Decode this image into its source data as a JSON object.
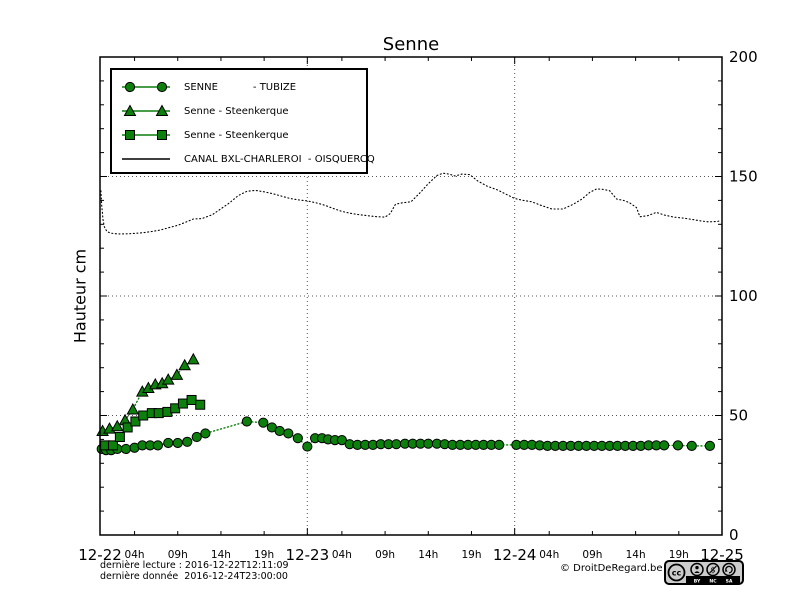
{
  "title": "Senne",
  "ylabel": "Hauteur cm",
  "footer": {
    "line1": "dernière lecture : 2016-12-22T12:11:09",
    "line2": "dernière donnée  2016-12-24T23:00:00",
    "copyright": "© DroitDeRegard.be",
    "license": {
      "cc_label": "cc",
      "labels": [
        "BY",
        "NC",
        "SA"
      ]
    }
  },
  "colors": {
    "series_green": "#0c7f0c",
    "canal_black": "#000000",
    "grid": "#555555"
  },
  "legend": [
    {
      "label": "SENNE           - TUBIZE",
      "marker": "circle",
      "color": "#0c7f0c"
    },
    {
      "label": "Senne - Steenkerque",
      "marker": "triangle",
      "color": "#0c7f0c"
    },
    {
      "label": "Senne - Steenkerque",
      "marker": "square",
      "color": "#0c7f0c"
    },
    {
      "label": "CANAL BXL-CHARLEROI  - OISQUERCQ",
      "marker": "line",
      "color": "#000000"
    }
  ],
  "chart_data": {
    "type": "line",
    "title": "Senne",
    "ylabel": "Hauteur cm",
    "ylim": [
      0,
      200
    ],
    "yticks": [
      0,
      50,
      100,
      150,
      200
    ],
    "y_minor_step": 10,
    "xlim_hours": [
      0,
      72
    ],
    "x_day_labels": [
      "12-22",
      "12-23",
      "12-24",
      "12-25"
    ],
    "x_day_hours": [
      0,
      24,
      48,
      72
    ],
    "x_minor_labels": [
      "04h",
      "09h",
      "14h",
      "19h"
    ],
    "x_minor_hours": [
      4,
      9,
      14,
      19
    ],
    "minor_label_day_offsets": [
      0,
      24,
      48
    ],
    "grid": true,
    "grid_x_hours": [
      24,
      48
    ],
    "grid_y_values": [
      50,
      100,
      150
    ],
    "series": [
      {
        "id": "canal-oisquercq",
        "name": "CANAL BXL-CHARLEROI - OISQUERCQ",
        "marker": "none",
        "color": "#000000",
        "points": [
          [
            0.1,
            144
          ],
          [
            0.2,
            138
          ],
          [
            0.35,
            132
          ],
          [
            0.5,
            129
          ],
          [
            0.8,
            127
          ],
          [
            1.2,
            126.3
          ],
          [
            2,
            126
          ],
          [
            3,
            126
          ],
          [
            4,
            126.2
          ],
          [
            5,
            126.5
          ],
          [
            6,
            127
          ],
          [
            7,
            127.6
          ],
          [
            8,
            128.6
          ],
          [
            9,
            129.6
          ],
          [
            10,
            131
          ],
          [
            10.8,
            132.2
          ],
          [
            11.8,
            132.4
          ],
          [
            13,
            134
          ],
          [
            14,
            136.5
          ],
          [
            15,
            139
          ],
          [
            16,
            142
          ],
          [
            17,
            143.8
          ],
          [
            18,
            144.2
          ],
          [
            19,
            143.6
          ],
          [
            20,
            142.8
          ],
          [
            21,
            141.8
          ],
          [
            22,
            140.8
          ],
          [
            23,
            140.2
          ],
          [
            24,
            139.8
          ],
          [
            25,
            139
          ],
          [
            26,
            138
          ],
          [
            27,
            136.6
          ],
          [
            28,
            135.4
          ],
          [
            29,
            134.6
          ],
          [
            30,
            134
          ],
          [
            31,
            133.6
          ],
          [
            32,
            133.2
          ],
          [
            33,
            133
          ],
          [
            33.6,
            134.5
          ],
          [
            34.2,
            138.4
          ],
          [
            35,
            139
          ],
          [
            36,
            139.4
          ],
          [
            37,
            143
          ],
          [
            38,
            147
          ],
          [
            39,
            150.4
          ],
          [
            39.7,
            151.4
          ],
          [
            40.4,
            151
          ],
          [
            41.1,
            150.2
          ],
          [
            41.9,
            151
          ],
          [
            42.8,
            150.8
          ],
          [
            43.7,
            148.2
          ],
          [
            44.8,
            146
          ],
          [
            46,
            144.4
          ],
          [
            47,
            142.6
          ],
          [
            48,
            140.8
          ],
          [
            49,
            140
          ],
          [
            50,
            139.4
          ],
          [
            51,
            138
          ],
          [
            52.3,
            136.4
          ],
          [
            53.6,
            136.4
          ],
          [
            54.8,
            138.4
          ],
          [
            55.8,
            140.6
          ],
          [
            56.7,
            143.4
          ],
          [
            57.5,
            144.8
          ],
          [
            58.3,
            144.6
          ],
          [
            59,
            144
          ],
          [
            59.8,
            140.6
          ],
          [
            60.6,
            140
          ],
          [
            61.3,
            139
          ],
          [
            62.1,
            137
          ],
          [
            62.5,
            133.2
          ],
          [
            63.4,
            133.6
          ],
          [
            64.4,
            135
          ],
          [
            65.4,
            133.8
          ],
          [
            66.4,
            133
          ],
          [
            67.5,
            132.6
          ],
          [
            68.6,
            132
          ],
          [
            69.6,
            131.4
          ],
          [
            70.5,
            131
          ],
          [
            71.5,
            131.2
          ],
          [
            71.9,
            131.6
          ]
        ]
      },
      {
        "id": "senne-tubize",
        "name": "SENNE - TUBIZE",
        "marker": "circle",
        "color": "#0c7f0c",
        "points": [
          [
            0.2,
            36
          ],
          [
            0.7,
            35.5
          ],
          [
            1.3,
            35.5
          ],
          [
            2,
            36
          ],
          [
            3,
            36
          ],
          [
            4,
            36.5
          ],
          [
            4.9,
            37.5
          ],
          [
            5.8,
            37.5
          ],
          [
            6.7,
            37.5
          ],
          [
            7.9,
            38.5
          ],
          [
            9,
            38.5
          ],
          [
            10.1,
            39
          ],
          [
            11.2,
            41
          ],
          [
            12.2,
            42.5
          ],
          [
            17,
            47.5
          ],
          [
            18.9,
            47
          ],
          [
            19.9,
            45
          ],
          [
            20.8,
            43.5
          ],
          [
            21.8,
            42.5
          ],
          [
            22.9,
            40.5
          ],
          [
            24,
            37
          ],
          [
            24.9,
            40.5
          ],
          [
            25.7,
            40.5
          ],
          [
            26.4,
            40
          ],
          [
            27.2,
            39.7
          ],
          [
            28,
            39.7
          ],
          [
            28.9,
            38
          ],
          [
            29.8,
            37.7
          ],
          [
            30.7,
            37.7
          ],
          [
            31.6,
            37.7
          ],
          [
            32.5,
            38
          ],
          [
            33.4,
            38
          ],
          [
            34.3,
            38
          ],
          [
            35.3,
            38.2
          ],
          [
            36.2,
            38.2
          ],
          [
            37.1,
            38.2
          ],
          [
            38,
            38.2
          ],
          [
            39,
            38.2
          ],
          [
            39.9,
            38
          ],
          [
            40.8,
            37.7
          ],
          [
            41.7,
            37.7
          ],
          [
            42.6,
            37.7
          ],
          [
            43.5,
            37.7
          ],
          [
            44.4,
            37.7
          ],
          [
            45.3,
            37.7
          ],
          [
            46.2,
            37.7
          ],
          [
            48.2,
            37.7
          ],
          [
            49.1,
            37.7
          ],
          [
            50,
            37.7
          ],
          [
            50.9,
            37.5
          ],
          [
            51.8,
            37.3
          ],
          [
            52.7,
            37.3
          ],
          [
            53.6,
            37.3
          ],
          [
            54.5,
            37.3
          ],
          [
            55.4,
            37.3
          ],
          [
            56.3,
            37.3
          ],
          [
            57.2,
            37.3
          ],
          [
            58.1,
            37.3
          ],
          [
            59,
            37.3
          ],
          [
            59.9,
            37.3
          ],
          [
            60.8,
            37.3
          ],
          [
            61.7,
            37.3
          ],
          [
            62.6,
            37.3
          ],
          [
            63.5,
            37.5
          ],
          [
            64.4,
            37.5
          ],
          [
            65.3,
            37.5
          ],
          [
            66.9,
            37.5
          ],
          [
            68.5,
            37.3
          ],
          [
            70.6,
            37.3
          ]
        ]
      },
      {
        "id": "senne-steenkerque-tri",
        "name": "Senne - Steenkerque",
        "marker": "triangle",
        "color": "#0c7f0c",
        "points": [
          [
            0.3,
            43.5
          ],
          [
            1.1,
            44.5
          ],
          [
            2,
            45.5
          ],
          [
            2.9,
            48
          ],
          [
            3.8,
            52.5
          ],
          [
            4.9,
            60
          ],
          [
            5.6,
            61.5
          ],
          [
            6.4,
            63
          ],
          [
            7.2,
            63.5
          ],
          [
            7.9,
            65
          ],
          [
            8.9,
            67
          ],
          [
            9.8,
            71
          ],
          [
            10.8,
            73.5
          ]
        ]
      },
      {
        "id": "senne-steenkerque-sq",
        "name": "Senne - Steenkerque",
        "marker": "square",
        "color": "#0c7f0c",
        "points": [
          [
            0.6,
            37.5
          ],
          [
            1.5,
            37.5
          ],
          [
            2.3,
            41
          ],
          [
            3.2,
            45
          ],
          [
            4.1,
            47.5
          ],
          [
            5,
            50
          ],
          [
            6,
            51
          ],
          [
            6.8,
            51
          ],
          [
            7.8,
            51.5
          ],
          [
            8.7,
            53
          ],
          [
            9.6,
            55
          ],
          [
            10.6,
            56.5
          ],
          [
            11.6,
            54.5
          ]
        ]
      }
    ]
  }
}
